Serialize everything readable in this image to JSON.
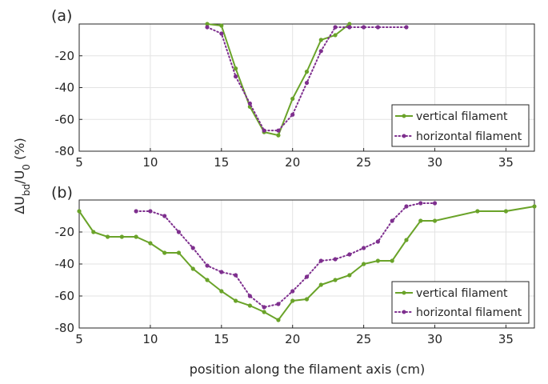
{
  "colors": {
    "vertical": "#6aa329",
    "horizontal": "#7e2f8e"
  },
  "chart_data": [
    {
      "panel_label": "(a)",
      "type": "line",
      "xlim": [
        5,
        37
      ],
      "ylim": [
        -80,
        0
      ],
      "xticks": [
        5,
        10,
        15,
        20,
        25,
        30,
        35
      ],
      "yticks": [
        -80,
        -60,
        -40,
        -20
      ],
      "grid": true,
      "xlabel": "",
      "ylabel": "",
      "legend": {
        "placement": "bottom-right"
      },
      "series": [
        {
          "name": "vertical filament",
          "style": "solid",
          "x": [
            14,
            15,
            16,
            17,
            18,
            19,
            20,
            21,
            22,
            23,
            24
          ],
          "y": [
            0,
            -1,
            -28,
            -52,
            -68,
            -70,
            -47,
            -30,
            -10,
            -7,
            0
          ]
        },
        {
          "name": "horizontal filament",
          "style": "dotted",
          "x": [
            14,
            15,
            16,
            17,
            18,
            19,
            20,
            21,
            22,
            23,
            24,
            25,
            26,
            28
          ],
          "y": [
            -2,
            -6,
            -33,
            -50,
            -67,
            -67,
            -57,
            -37,
            -17,
            -2,
            -2,
            -2,
            -2,
            -2
          ]
        }
      ]
    },
    {
      "panel_label": "(b)",
      "type": "line",
      "xlim": [
        5,
        37
      ],
      "ylim": [
        -80,
        0
      ],
      "xticks": [
        5,
        10,
        15,
        20,
        25,
        30,
        35
      ],
      "yticks": [
        -80,
        -60,
        -40,
        -20
      ],
      "grid": true,
      "xlabel": "position along the filament axis (cm)",
      "ylabel": "ΔU_bd/U_0 (%)",
      "legend": {
        "placement": "bottom-right"
      },
      "series": [
        {
          "name": "vertical filament",
          "style": "solid",
          "x": [
            5,
            6,
            7,
            8,
            9,
            10,
            11,
            12,
            13,
            14,
            15,
            16,
            17,
            18,
            19,
            20,
            21,
            22,
            23,
            24,
            25,
            26,
            27,
            28,
            29,
            30,
            33,
            35,
            37
          ],
          "y": [
            -7,
            -20,
            -23,
            -23,
            -23,
            -27,
            -33,
            -33,
            -43,
            -50,
            -57,
            -63,
            -66,
            -70,
            -75,
            -63,
            -62,
            -53,
            -50,
            -47,
            -40,
            -38,
            -38,
            -25,
            -13,
            -13,
            -7,
            -7,
            -4
          ]
        },
        {
          "name": "horizontal filament",
          "style": "dotted",
          "x": [
            9,
            10,
            11,
            12,
            13,
            14,
            15,
            16,
            17,
            18,
            19,
            20,
            21,
            22,
            23,
            24,
            25,
            26,
            27,
            28,
            29,
            30
          ],
          "y": [
            -7,
            -7,
            -10,
            -20,
            -30,
            -41,
            -45,
            -47,
            -60,
            -67,
            -65,
            -57,
            -48,
            -38,
            -37,
            -34,
            -30,
            -26,
            -13,
            -4,
            -2,
            -2
          ]
        }
      ]
    }
  ]
}
